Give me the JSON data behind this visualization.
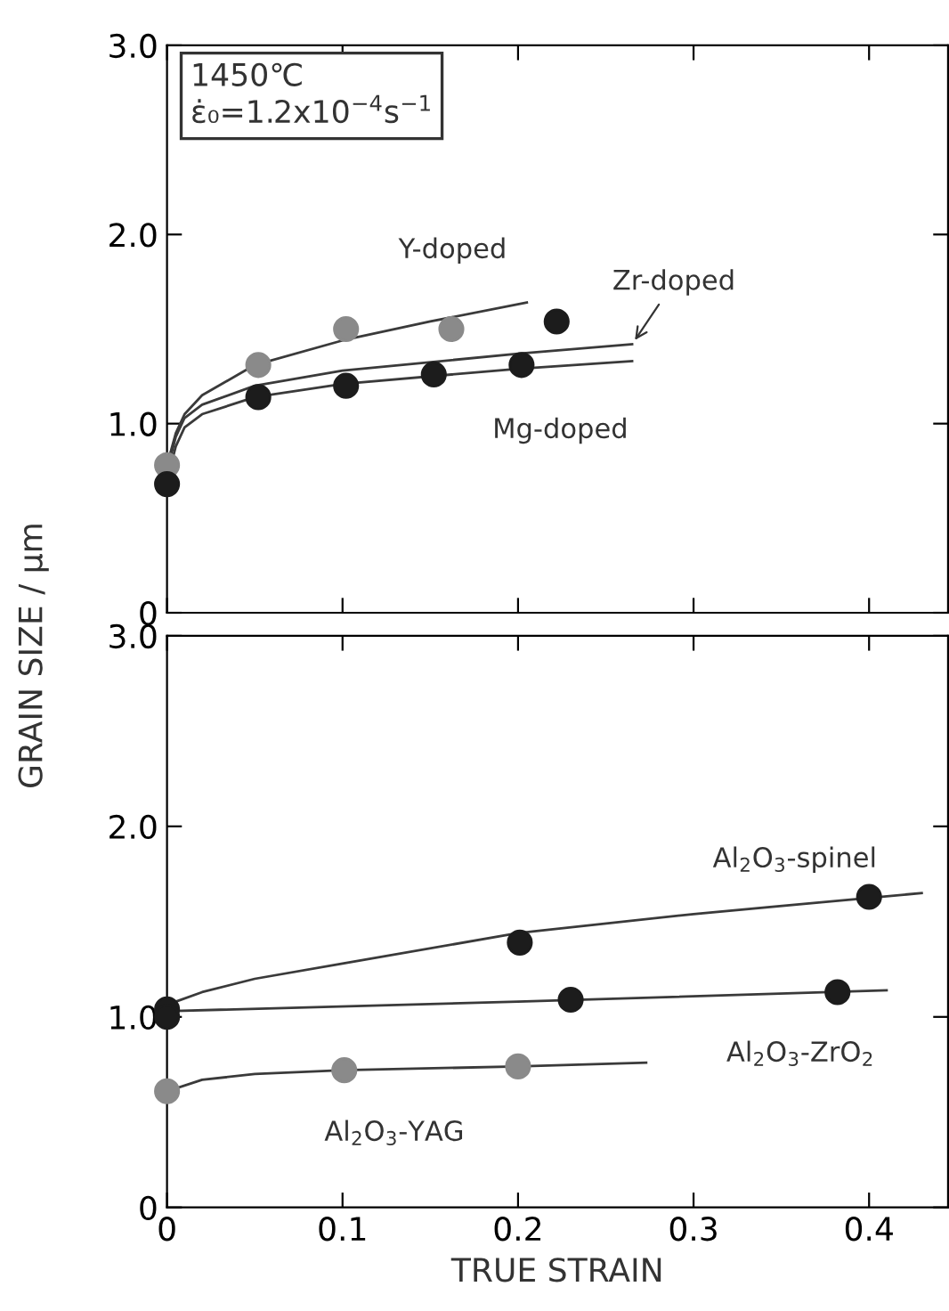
{
  "chart_data": [
    {
      "type": "scatter",
      "ylabel": "GRAIN SIZE / μm",
      "xlim": [
        0,
        0.445
      ],
      "ylim": [
        0,
        3.0
      ],
      "xticks": [
        0,
        0.1,
        0.2,
        0.3,
        0.4
      ],
      "yticks": [
        0,
        {
          "value": 1.0,
          "label": "1.0"
        },
        {
          "value": 2.0,
          "label": "2.0"
        },
        {
          "value": 3.0,
          "label": "3.0"
        }
      ],
      "tick_labels": "y",
      "grid": false,
      "legend": false,
      "annotations": [
        "1450℃",
        "ε̇₀=1.2x10$^{−4}$s$^{−1}$",
        {
          "text": "Y-doped",
          "x": 0.205,
          "y": 1.64
        },
        {
          "text": "Zr-doped",
          "x": 0.265,
          "y": 1.42
        },
        {
          "text": "Mg-doped",
          "x": 0.21,
          "y": 1.29
        }
      ],
      "series": [
        {
          "type": "line",
          "color": "#3a3a3a",
          "marker": "none",
          "x": [
            0,
            0.005,
            0.01,
            0.02,
            0.05,
            0.1,
            0.15,
            0.205
          ],
          "values": [
            0.78,
            0.95,
            1.05,
            1.15,
            1.31,
            1.44,
            1.54,
            1.64
          ]
        },
        {
          "type": "line",
          "color": "#3a3a3a",
          "marker": "none",
          "x": [
            0,
            0.005,
            0.01,
            0.02,
            0.05,
            0.1,
            0.2,
            0.265
          ],
          "values": [
            0.75,
            0.93,
            1.03,
            1.1,
            1.2,
            1.28,
            1.37,
            1.42
          ]
        },
        {
          "type": "line",
          "color": "#3a3a3a",
          "marker": "none",
          "x": [
            0,
            0.005,
            0.01,
            0.02,
            0.05,
            0.1,
            0.2,
            0.265
          ],
          "values": [
            0.7,
            0.88,
            0.98,
            1.05,
            1.14,
            1.21,
            1.29,
            1.33
          ]
        },
        {
          "color": "#8a8a8a",
          "marker": "circle",
          "x": [
            0,
            0.052,
            0.102,
            0.162
          ],
          "values": [
            0.78,
            1.31,
            1.5,
            1.5
          ]
        },
        {
          "color": "#1c1c1c",
          "marker": "circle",
          "x": [
            0,
            0.052,
            0.102,
            0.152,
            0.202,
            0.222
          ],
          "values": [
            0.68,
            1.14,
            1.2,
            1.26,
            1.31,
            1.54
          ]
        }
      ]
    },
    {
      "type": "scatter",
      "xlabel": "TRUE STRAIN",
      "xlim": [
        0,
        0.445
      ],
      "ylim": [
        0,
        3.0
      ],
      "xticks": [
        0,
        0.1,
        0.2,
        0.3,
        0.4
      ],
      "yticks": [
        0,
        {
          "value": 1.0,
          "label": "1.0"
        },
        {
          "value": 2.0,
          "label": "2.0"
        },
        {
          "value": 3.0,
          "label": "3.0"
        }
      ],
      "grid": false,
      "legend": false,
      "annotations": [
        {
          "text": "Al$_{2}$O$_{3}$-spinel",
          "x": 0.4,
          "y": 1.63
        },
        {
          "text": "Al$_{2}$O$_{3}$-ZrO$_{2}$",
          "x": 0.382,
          "y": 1.13
        },
        {
          "text": "Al$_{2}$O$_{3}$-YAG",
          "x": 0.2,
          "y": 0.74
        }
      ],
      "series": [
        {
          "type": "line",
          "color": "#3a3a3a",
          "marker": "none",
          "x": [
            0,
            0.005,
            0.02,
            0.05,
            0.1,
            0.2,
            0.3,
            0.43
          ],
          "values": [
            1.03,
            1.08,
            1.13,
            1.2,
            1.28,
            1.44,
            1.54,
            1.65
          ]
        },
        {
          "type": "line",
          "color": "#3a3a3a",
          "marker": "none",
          "x": [
            0,
            0.2,
            0.41
          ],
          "values": [
            1.03,
            1.08,
            1.14
          ]
        },
        {
          "type": "line",
          "color": "#3a3a3a",
          "marker": "none",
          "x": [
            0,
            0.02,
            0.05,
            0.1,
            0.2,
            0.273
          ],
          "values": [
            0.61,
            0.67,
            0.7,
            0.72,
            0.74,
            0.76
          ]
        },
        {
          "color": "#1c1c1c",
          "marker": "circle",
          "x": [
            0,
            0.201,
            0.4
          ],
          "values": [
            1.04,
            1.39,
            1.63
          ]
        },
        {
          "color": "#1c1c1c",
          "marker": "circle",
          "x": [
            0,
            0.23,
            0.382
          ],
          "values": [
            1.0,
            1.09,
            1.13
          ]
        },
        {
          "color": "#8a8a8a",
          "marker": "circle",
          "x": [
            0,
            0.101,
            0.2
          ],
          "values": [
            0.61,
            0.72,
            0.74
          ]
        }
      ]
    }
  ]
}
